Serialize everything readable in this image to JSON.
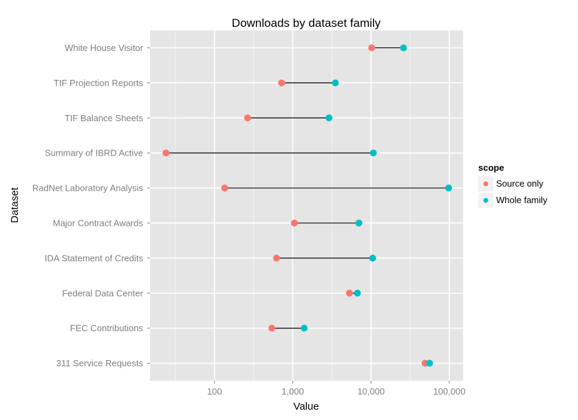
{
  "chart_data": {
    "type": "scatter",
    "subtype": "dumbbell",
    "title": "Downloads by dataset family",
    "xlabel": "Value",
    "ylabel": "Dataset",
    "x_scale": "log10",
    "xlim": [
      15,
      150000
    ],
    "x_ticks": [
      100,
      1000,
      10000,
      100000
    ],
    "x_tick_labels": [
      "100",
      "1,000",
      "10,000",
      "100,000"
    ],
    "grid": true,
    "legend": {
      "title": "scope",
      "position": "right",
      "entries": [
        "Source only",
        "Whole family"
      ]
    },
    "categories": [
      "White House Visitor",
      "TIF Projection Reports",
      "TIF Balance Sheets",
      "Summary of IBRD Active",
      "RadNet Laboratory Analysis",
      "Major Contract Awards",
      "IDA Statement of Credits",
      "Federal Data Center",
      "FEC Contributions",
      "311 Service Requests"
    ],
    "series": [
      {
        "name": "Source only",
        "color": "#F8766D",
        "values": [
          10200,
          720,
          265,
          24,
          135,
          1050,
          620,
          5300,
          540,
          49000
        ]
      },
      {
        "name": "Whole family",
        "color": "#00BFC4",
        "values": [
          26000,
          3500,
          2900,
          10700,
          98000,
          7000,
          10500,
          6700,
          1400,
          56000
        ]
      }
    ]
  },
  "colors": {
    "panel_background": "#E5E5E5",
    "grid_major": "#FFFFFF",
    "grid_minor": "#F2F2F2",
    "segment": "#000000"
  }
}
